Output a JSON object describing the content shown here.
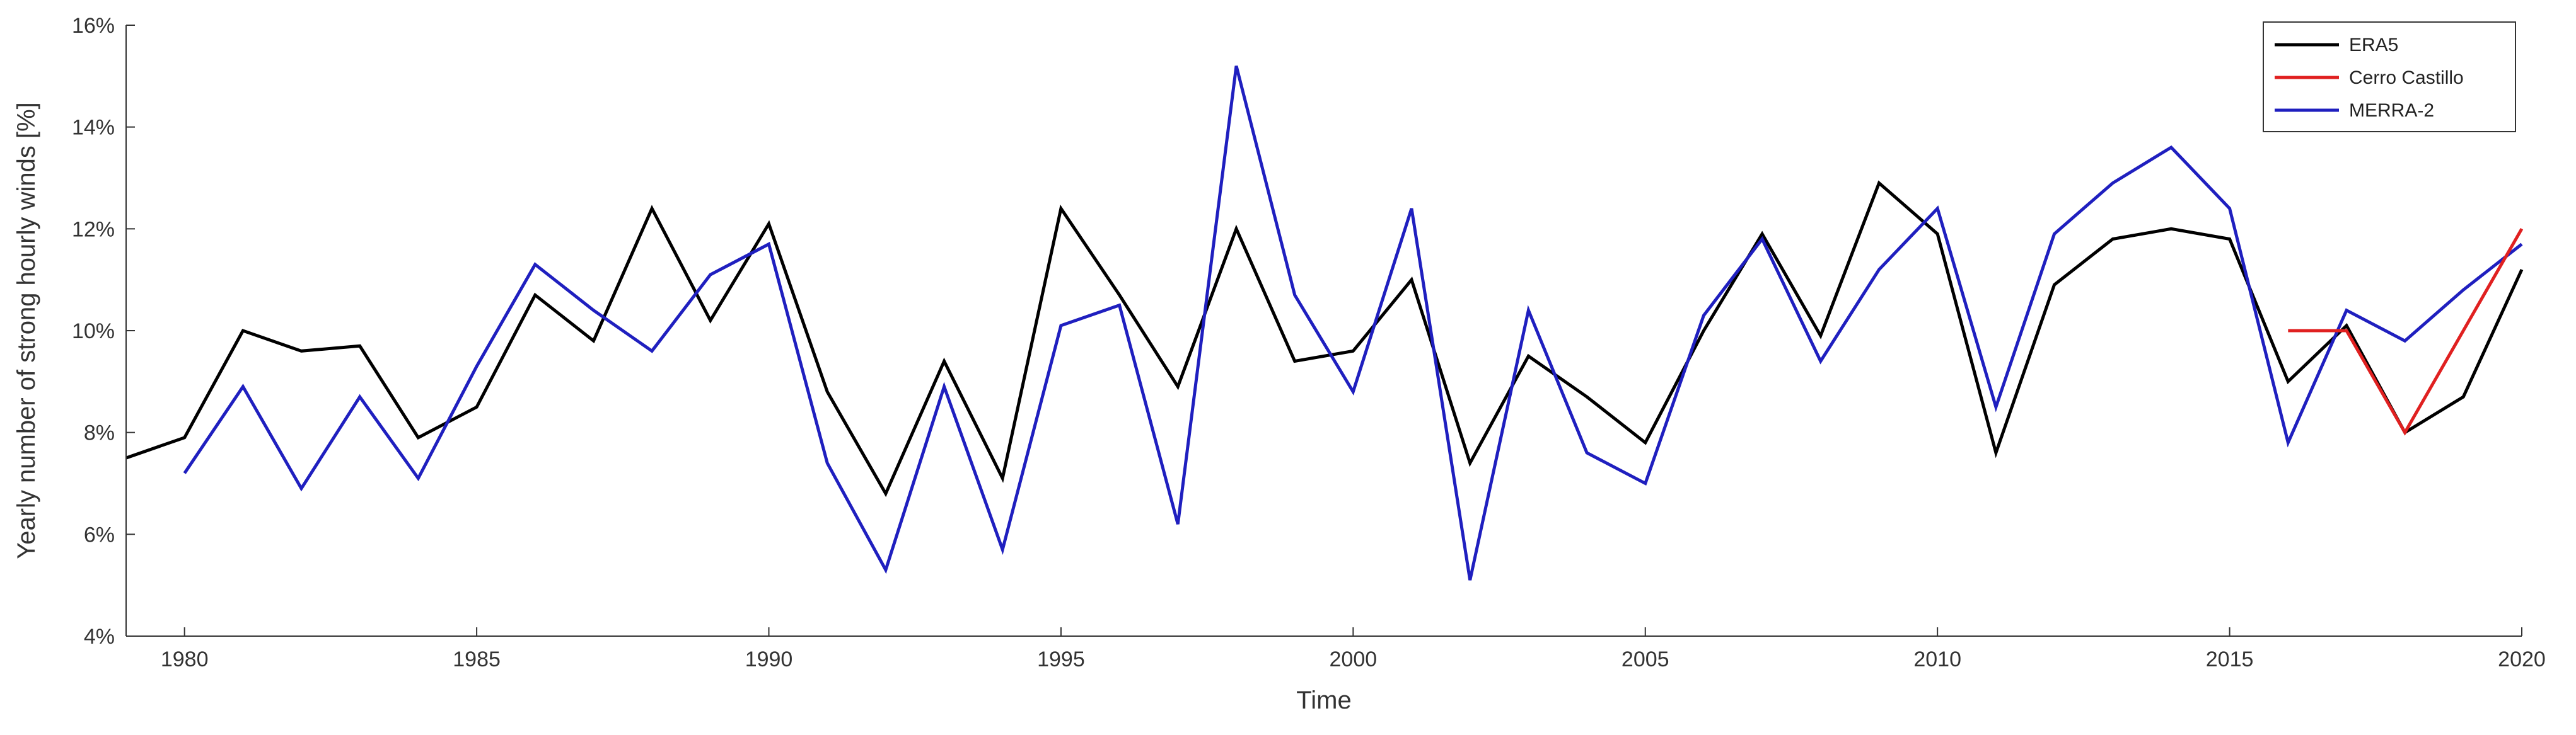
{
  "chart_data": {
    "type": "line",
    "title": "",
    "xlabel": "Time",
    "ylabel": "Yearly number of strong hourly winds [%]",
    "xlim": [
      1979,
      2020
    ],
    "ylim": [
      4,
      16
    ],
    "xticks": [
      1980,
      1985,
      1990,
      1995,
      2000,
      2005,
      2010,
      2015,
      2020
    ],
    "yticks": [
      4,
      6,
      8,
      10,
      12,
      14,
      16
    ],
    "ytick_labels": [
      "4%",
      "6%",
      "8%",
      "10%",
      "12%",
      "14%",
      "16%"
    ],
    "grid": false,
    "legend_position": "top-right",
    "series": [
      {
        "name": "ERA5",
        "color": "#000000",
        "x": [
          1979,
          1980,
          1981,
          1982,
          1983,
          1984,
          1985,
          1986,
          1987,
          1988,
          1989,
          1990,
          1991,
          1992,
          1993,
          1994,
          1995,
          1996,
          1997,
          1998,
          1999,
          2000,
          2001,
          2002,
          2003,
          2004,
          2005,
          2006,
          2007,
          2008,
          2009,
          2010,
          2011,
          2012,
          2013,
          2014,
          2015,
          2016,
          2017,
          2018,
          2019,
          2020
        ],
        "values": [
          7.5,
          7.9,
          10.0,
          9.6,
          9.7,
          7.9,
          8.5,
          10.7,
          9.8,
          12.4,
          10.2,
          12.1,
          8.8,
          6.8,
          9.4,
          7.1,
          12.4,
          10.7,
          8.9,
          12.0,
          9.4,
          9.6,
          11.0,
          7.4,
          9.5,
          8.7,
          7.8,
          10.0,
          11.9,
          9.9,
          12.9,
          11.9,
          7.6,
          10.9,
          11.8,
          12.0,
          11.8,
          9.0,
          10.1,
          8.0,
          8.7,
          11.2
        ]
      },
      {
        "name": "Cerro Castillo",
        "color": "#e02020",
        "x": [
          2016,
          2017,
          2018,
          2019,
          2020
        ],
        "values": [
          10.0,
          10.0,
          8.0,
          10.0,
          12.0
        ]
      },
      {
        "name": "MERRA-2",
        "color": "#1f1fbf",
        "x": [
          1980,
          1981,
          1982,
          1983,
          1984,
          1985,
          1986,
          1987,
          1988,
          1989,
          1990,
          1991,
          1992,
          1993,
          1994,
          1995,
          1996,
          1997,
          1998,
          1999,
          2000,
          2001,
          2002,
          2003,
          2004,
          2005,
          2006,
          2007,
          2008,
          2009,
          2010,
          2011,
          2012,
          2013,
          2014,
          2015,
          2016,
          2017,
          2018,
          2019,
          2020
        ],
        "values": [
          7.2,
          8.9,
          6.9,
          8.7,
          7.1,
          9.3,
          11.3,
          10.4,
          9.6,
          11.1,
          11.7,
          7.4,
          5.3,
          8.9,
          5.7,
          10.1,
          10.5,
          6.2,
          15.2,
          10.7,
          8.8,
          12.4,
          5.1,
          10.4,
          7.6,
          7.0,
          10.3,
          11.8,
          9.4,
          11.2,
          12.4,
          8.5,
          11.9,
          12.9,
          13.6,
          12.4,
          7.8,
          10.4,
          9.8,
          10.8,
          11.7
        ]
      }
    ]
  }
}
